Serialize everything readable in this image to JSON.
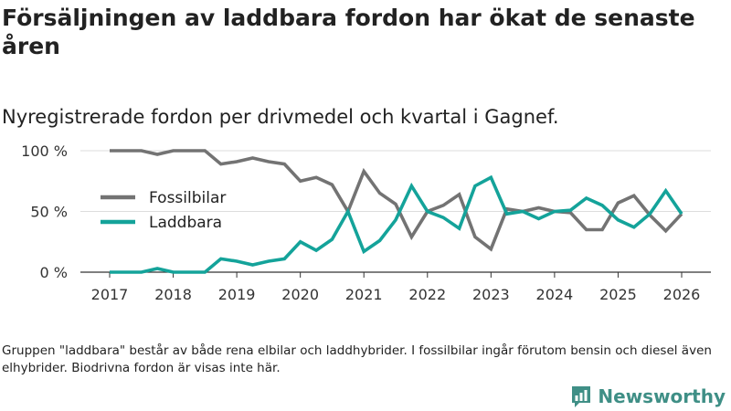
{
  "title": "Försäljningen av laddbara fordon har ökat de senaste åren",
  "subtitle": "Nyregistrerade fordon per drivmedel och kvartal i Gagnef.",
  "footnote": "Gruppen \"laddbara\" består av både rena elbilar och laddhybrider. I fossilbilar ingår förutom bensin och diesel även elhybrider. Biodrivna fordon är visas inte här.",
  "brand": {
    "name": "Newsworthy",
    "icon": "newsworthy-logo-icon"
  },
  "colors": {
    "fossil": "#737373",
    "laddbara": "#14a39a",
    "grid": "#dddddd",
    "axis": "#333333",
    "brand": "#3f8f86"
  },
  "chart_data": {
    "type": "line",
    "title": "Försäljningen av laddbara fordon har ökat de senaste åren",
    "xlabel": "",
    "ylabel": "",
    "xlim": [
      2017,
      2026
    ],
    "ylim": [
      0,
      100
    ],
    "y_ticks": [
      0,
      50,
      100
    ],
    "y_tick_labels": [
      "0 %",
      "50 %",
      "100 %"
    ],
    "x_ticks": [
      2017,
      2018,
      2019,
      2020,
      2021,
      2022,
      2023,
      2024,
      2025,
      2026
    ],
    "x_tick_labels": [
      "2017",
      "2018",
      "2019",
      "2020",
      "2021",
      "2022",
      "2023",
      "2024",
      "2025",
      "2026"
    ],
    "legend": "left-middle",
    "x": [
      2017.0,
      2017.25,
      2017.5,
      2017.75,
      2018.0,
      2018.25,
      2018.5,
      2018.75,
      2019.0,
      2019.25,
      2019.5,
      2019.75,
      2020.0,
      2020.25,
      2020.5,
      2020.75,
      2021.0,
      2021.25,
      2021.5,
      2021.75,
      2022.0,
      2022.25,
      2022.5,
      2022.75,
      2023.0,
      2023.25,
      2023.5,
      2023.75,
      2024.0,
      2024.25,
      2024.5,
      2024.75,
      2025.0,
      2025.25,
      2025.5,
      2025.75,
      2026.0
    ],
    "series": [
      {
        "name": "Fossilbilar",
        "color": "#737373",
        "values": [
          100,
          100,
          100,
          97,
          100,
          100,
          100,
          89,
          91,
          94,
          91,
          89,
          75,
          78,
          72,
          50,
          83,
          65,
          56,
          29,
          50,
          55,
          64,
          29,
          19,
          52,
          50,
          53,
          50,
          49,
          35,
          35,
          57,
          63,
          47,
          34,
          48
        ]
      },
      {
        "name": "Laddbara",
        "color": "#14a39a",
        "values": [
          0,
          0,
          0,
          3,
          0,
          0,
          0,
          11,
          9,
          6,
          9,
          11,
          25,
          18,
          27,
          50,
          17,
          26,
          43,
          71,
          50,
          45,
          36,
          71,
          78,
          48,
          50,
          44,
          50,
          51,
          61,
          55,
          43,
          37,
          48,
          67,
          48
        ]
      }
    ]
  }
}
